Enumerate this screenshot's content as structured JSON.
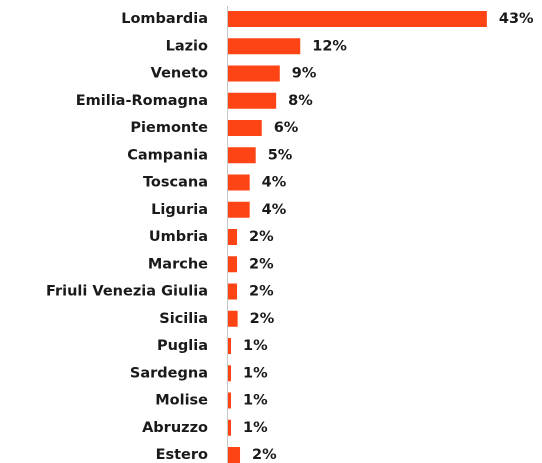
{
  "chart_data": {
    "type": "bar",
    "orientation": "horizontal",
    "categories": [
      "Lombardia",
      "Lazio",
      "Veneto",
      "Emilia-Romagna",
      "Piemonte",
      "Campania",
      "Toscana",
      "Liguria",
      "Umbria",
      "Marche",
      "Friuli Venezia Giulia",
      "Sicilia",
      "Puglia",
      "Sardegna",
      "Molise",
      "Abruzzo",
      "Estero"
    ],
    "values": [
      43,
      12,
      8.6,
      8,
      5.6,
      4.6,
      3.6,
      3.6,
      1.5,
      1.5,
      1.5,
      1.6,
      0.5,
      0.5,
      0.5,
      0.5,
      2
    ],
    "value_labels": [
      "43%",
      "12%",
      "9%",
      "8%",
      "6%",
      "5%",
      "4%",
      "4%",
      "2%",
      "2%",
      "2%",
      "2%",
      "1%",
      "1%",
      "1%",
      "1%",
      "2%"
    ],
    "color": "#fe4314"
  }
}
